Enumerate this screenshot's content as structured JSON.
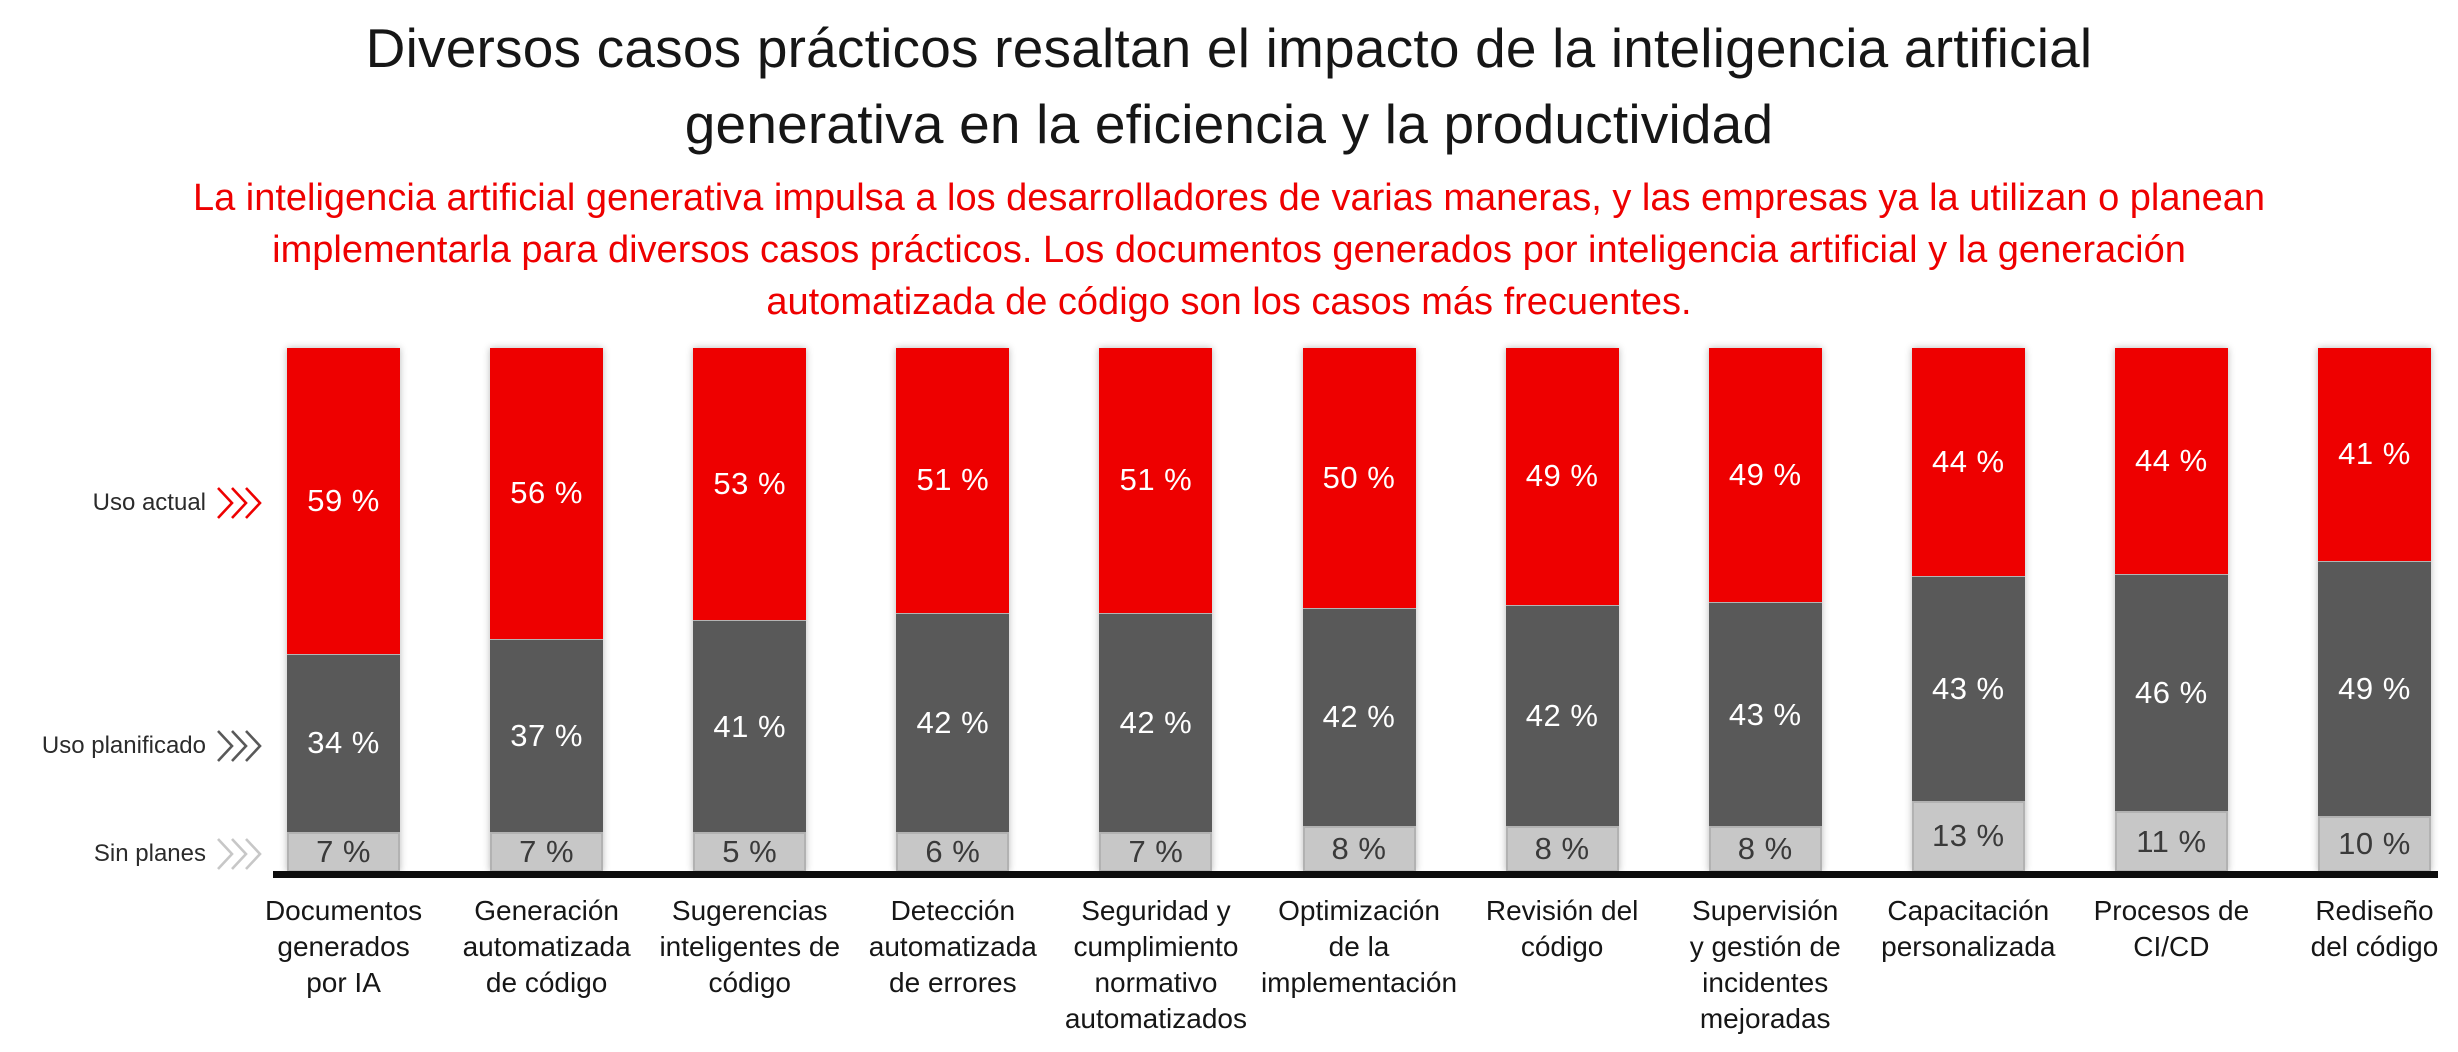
{
  "page": {
    "background": "#ffffff"
  },
  "chart_data": {
    "type": "bar",
    "stacked": true,
    "orientation": "vertical",
    "unit": "%",
    "value_label_format": "{v} %",
    "title_lines": [
      "Diversos casos prácticos resaltan el impacto de la inteligencia artificial",
      "generativa en la eficiencia y la productividad"
    ],
    "title": "Diversos casos prácticos resaltan el impacto de la inteligencia artificial generativa en la eficiencia y la productividad",
    "subtitle_lines": [
      "La inteligencia artificial generativa impulsa a los desarrolladores de varias maneras, y las empresas ya la utilizan o planean",
      "implementarla para diversos casos prácticos. Los documentos generados por inteligencia artificial y la generación",
      "automatizada de código son los casos más frecuentes."
    ],
    "subtitle": "La inteligencia artificial generativa impulsa a los desarrolladores de varias maneras, y las empresas ya la utilizan o planean implementarla para diversos casos prácticos. Los documentos generados por inteligencia artificial y la generación automatizada de código son los casos más frecuentes.",
    "categories": [
      {
        "label": "Documentos generados por IA",
        "lines": [
          "Documentos",
          "generados",
          "por IA"
        ]
      },
      {
        "label": "Generación automatizada de código",
        "lines": [
          "Generación",
          "automatizada",
          "de código"
        ]
      },
      {
        "label": "Sugerencias inteligentes de código",
        "lines": [
          "Sugerencias",
          "inteligentes de",
          "código"
        ]
      },
      {
        "label": "Detección automatizada de errores",
        "lines": [
          "Detección",
          "automatizada",
          "de errores"
        ]
      },
      {
        "label": "Seguridad y cumplimiento normativo automatizados",
        "lines": [
          "Seguridad y",
          "cumplimiento",
          "normativo",
          "automatizados"
        ]
      },
      {
        "label": "Optimización de la implementación",
        "lines": [
          "Optimización",
          "de la",
          "implementación"
        ]
      },
      {
        "label": "Revisión del código",
        "lines": [
          "Revisión del",
          "código"
        ]
      },
      {
        "label": "Supervisión y gestión de incidentes mejoradas",
        "lines": [
          "Supervisión",
          "y gestión de",
          "incidentes",
          "mejoradas"
        ]
      },
      {
        "label": "Capacitación personalizada",
        "lines": [
          "Capacitación",
          "personalizada"
        ]
      },
      {
        "label": "Procesos de CI/CD",
        "lines": [
          "Procesos de",
          "CI/CD"
        ]
      },
      {
        "label": "Rediseño del código",
        "lines": [
          "Rediseño",
          "del código"
        ]
      }
    ],
    "series": [
      {
        "name": "Uso actual",
        "color": "#ee0000",
        "text_color": "#ffffff",
        "values": [
          59,
          56,
          53,
          51,
          51,
          50,
          49,
          49,
          44,
          44,
          41
        ]
      },
      {
        "name": "Uso planificado",
        "color": "#595959",
        "text_color": "#ffffff",
        "values": [
          34,
          37,
          41,
          42,
          42,
          42,
          42,
          43,
          43,
          46,
          49
        ]
      },
      {
        "name": "Sin planes",
        "color": "#c7c7c7",
        "text_color": "#3a3a3a",
        "values": [
          7,
          7,
          5,
          6,
          7,
          8,
          8,
          8,
          13,
          11,
          10
        ]
      }
    ],
    "legend_position": "left",
    "grid": false,
    "colors": {
      "title": "#161616",
      "subtitle": "#ee0000",
      "axis_line": "#0d0d0d",
      "category_label": "#161616"
    }
  }
}
